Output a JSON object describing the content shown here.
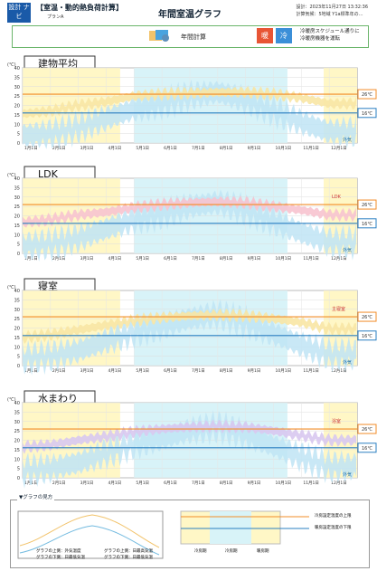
{
  "header": {
    "logo_text": "設計\nナビ",
    "title": "【室温・動的熱負荷計算】",
    "subtitle": "プランA",
    "graph_title": "年間室温グラフ",
    "meta_lines": [
      "設計：2023年11月27日 13:32:36",
      "計算気候：5地域 Y1a標準年の…"
    ]
  },
  "topbar": {
    "calc_label": "年間計算",
    "heat_label": "暖",
    "cool_label": "冷",
    "note_lines": [
      "冷暖房スケジュール通りに",
      "冷暖房機器を運転"
    ]
  },
  "colors": {
    "heat_line": "#f28c28",
    "cool_line": "#2a7fc1",
    "heat_period_bg": "#fff7c6",
    "cool_period_bg": "#d8f3f8",
    "outdoor_band": "#bfe4f4",
    "indoor_band_pink": "#f7c3cf",
    "indoor_band_yellow": "#f8e5a4",
    "indoor_band_purple": "#d8c8ef"
  },
  "chart_data": [
    {
      "type": "area",
      "title": "建物平均",
      "y_unit": "(℃)",
      "ylim": [
        0,
        40
      ],
      "yticks": [
        0,
        5,
        10,
        15,
        20,
        25,
        30,
        35,
        40
      ],
      "x_ticks": [
        "1月1日",
        "2月1日",
        "3月1日",
        "4月1日",
        "5月1日",
        "6月1日",
        "7月1日",
        "8月1日",
        "9月1日",
        "10月1日",
        "11月1日",
        "12月1日"
      ],
      "heating_setpoint_label": "26℃",
      "cooling_setpoint_label": "16℃",
      "heating_setpoint": 26,
      "cooling_setpoint": 16,
      "outdoor_label": "外気",
      "room_label": "",
      "indoor_band_color": "#f8e5a4",
      "indoor_line": [
        15.5,
        17,
        20,
        22,
        25,
        26,
        26.5,
        27,
        27,
        26,
        24,
        21
      ],
      "outdoor_line": [
        4,
        5,
        8,
        13,
        18,
        21,
        25,
        27,
        23,
        17,
        11,
        6
      ]
    },
    {
      "type": "area",
      "title": "LDK",
      "y_unit": "(℃)",
      "ylim": [
        0,
        40
      ],
      "yticks": [
        0,
        5,
        10,
        15,
        20,
        25,
        30,
        35,
        40
      ],
      "x_ticks": [
        "1月1日",
        "2月1日",
        "3月1日",
        "4月1日",
        "5月1日",
        "6月1日",
        "7月1日",
        "8月1日",
        "9月1日",
        "10月1日",
        "11月1日",
        "12月1日"
      ],
      "heating_setpoint_label": "26℃",
      "cooling_setpoint_label": "16℃",
      "heating_setpoint": 26,
      "cooling_setpoint": 16,
      "outdoor_label": "外気",
      "room_label": "LDK",
      "indoor_band_color": "#f7c3cf",
      "indoor_line": [
        16.5,
        18,
        20.5,
        22,
        24.5,
        26,
        27,
        27.5,
        27,
        25,
        23,
        20.5
      ],
      "outdoor_line": [
        4,
        5,
        8,
        13,
        18,
        21,
        25,
        27,
        23,
        17,
        11,
        6
      ]
    },
    {
      "type": "area",
      "title": "寝室",
      "y_unit": "(℃)",
      "ylim": [
        0,
        40
      ],
      "yticks": [
        0,
        5,
        10,
        15,
        20,
        25,
        30,
        35,
        40
      ],
      "x_ticks": [
        "1月1日",
        "2月1日",
        "3月1日",
        "4月1日",
        "5月1日",
        "6月1日",
        "7月1日",
        "8月1日",
        "9月1日",
        "10月1日",
        "11月1日",
        "12月1日"
      ],
      "heating_setpoint_label": "26℃",
      "cooling_setpoint_label": "16℃",
      "heating_setpoint": 26,
      "cooling_setpoint": 16,
      "outdoor_label": "外気",
      "room_label": "主寝室",
      "indoor_band_color": "#f8e5a4",
      "indoor_line": [
        15,
        16.5,
        19,
        21.5,
        24,
        25.5,
        26.5,
        27,
        26.5,
        25,
        23,
        19.5
      ],
      "outdoor_line": [
        4,
        5,
        8,
        13,
        18,
        21,
        25,
        27,
        23,
        17,
        11,
        6
      ]
    },
    {
      "type": "area",
      "title": "水まわり",
      "y_unit": "(℃)",
      "ylim": [
        0,
        40
      ],
      "yticks": [
        0,
        5,
        10,
        15,
        20,
        25,
        30,
        35,
        40
      ],
      "x_ticks": [
        "1月1日",
        "2月1日",
        "3月1日",
        "4月1日",
        "5月1日",
        "6月1日",
        "7月1日",
        "8月1日",
        "9月1日",
        "10月1日",
        "11月1日",
        "12月1日"
      ],
      "heating_setpoint_label": "26℃",
      "cooling_setpoint_label": "16℃",
      "heating_setpoint": 26,
      "cooling_setpoint": 16,
      "outdoor_label": "外気",
      "room_label": "浴室",
      "indoor_band_color": "#d8c8ef",
      "indoor_line": [
        16.5,
        17.5,
        20,
        22,
        24.5,
        26,
        27,
        27.5,
        27,
        25,
        22.5,
        20
      ],
      "outdoor_line": [
        4,
        5,
        8,
        13,
        18,
        21,
        25,
        27,
        23,
        17,
        11,
        6
      ]
    }
  ],
  "legend": {
    "title": "▼グラフの見方",
    "labels": [
      "グラフの上側：外気温度",
      "グラフの下側：日最低気温",
      "グラフの上側：日最高気温",
      "グラフの下側：日最低気温",
      "冷房期",
      "冷房期",
      "暖房期"
    ],
    "line_labels": [
      "冷房設定温度の上限",
      "暖房設定温度の下限"
    ]
  }
}
